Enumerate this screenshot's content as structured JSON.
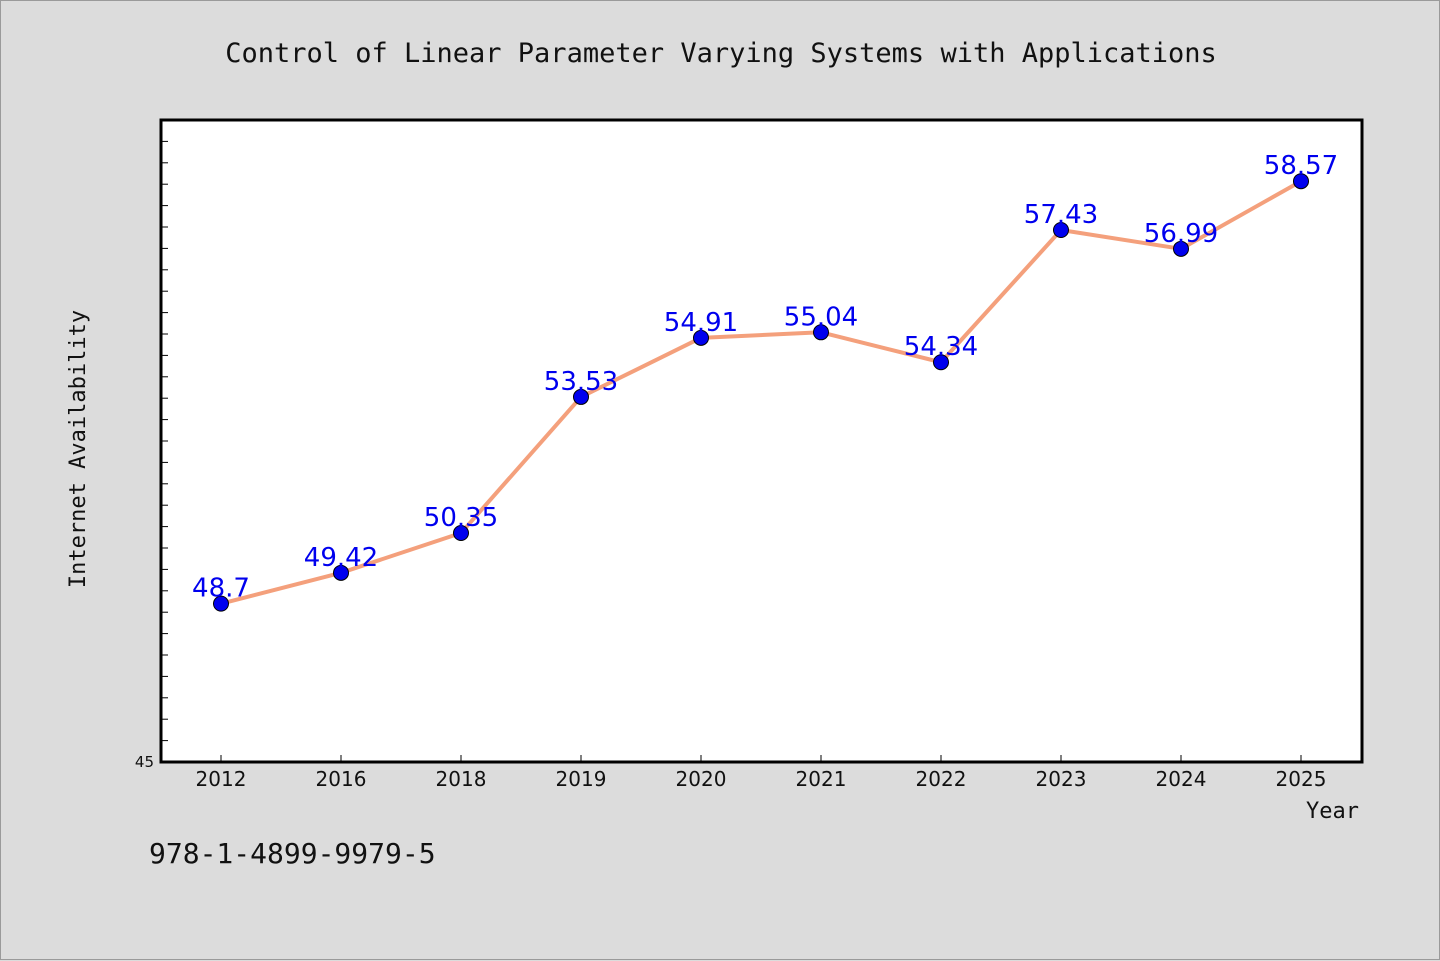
{
  "chart_data": {
    "type": "line",
    "title": "Control of Linear Parameter Varying Systems with Applications",
    "xlabel": "Year",
    "ylabel": "Internet Availability",
    "categories": [
      "2012",
      "2016",
      "2018",
      "2019",
      "2020",
      "2021",
      "2022",
      "2023",
      "2024",
      "2025"
    ],
    "series": [
      {
        "values": [
          48.7,
          49.42,
          50.35,
          53.53,
          54.91,
          55.04,
          54.34,
          57.43,
          56.99,
          58.57
        ],
        "data_labels": [
          "48.7",
          "49.42",
          "50.35",
          "53.53",
          "54.91",
          "55.04",
          "54.34",
          "57.43",
          "56.99",
          "58.57"
        ]
      }
    ],
    "ylim": [
      45,
      60
    ],
    "y_tick_label": "45",
    "grid": false,
    "legend": "none",
    "colors": {
      "line": "#f4a07c",
      "marker": "#0000ee",
      "data_label": "#0000ee",
      "plot_background": "#ffffff",
      "figure_background": "#dcdcdc"
    }
  },
  "footer": {
    "isbn": "978-1-4899-9979-5"
  }
}
